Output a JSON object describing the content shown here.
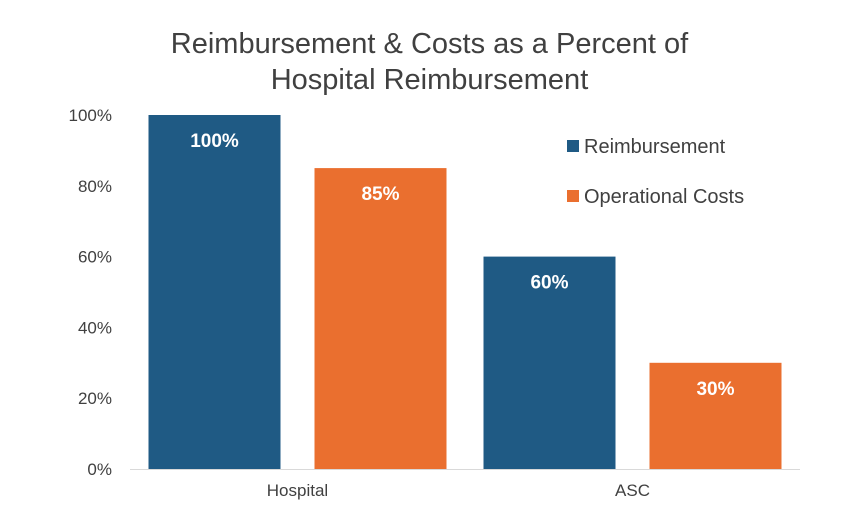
{
  "chart_data": {
    "type": "bar",
    "title_lines": [
      "Reimbursement & Costs as a Percent of",
      "Hospital Reimbursement"
    ],
    "categories": [
      "Hospital",
      "ASC"
    ],
    "series": [
      {
        "name": "Reimbursement",
        "values": [
          100,
          60
        ],
        "labels": [
          "100%",
          "60%"
        ],
        "color": "#1f5a84"
      },
      {
        "name": "Operational Costs",
        "values": [
          85,
          30
        ],
        "labels": [
          "85%",
          "30%"
        ],
        "color": "#ea6f2f"
      }
    ],
    "yticks": [
      0,
      20,
      40,
      60,
      80,
      100
    ],
    "ytick_labels": [
      "0%",
      "20%",
      "40%",
      "60%",
      "80%",
      "100%"
    ],
    "ylim": [
      0,
      100
    ],
    "xlabel": "",
    "ylabel": "",
    "legend_position": "top-right",
    "grid": false
  }
}
